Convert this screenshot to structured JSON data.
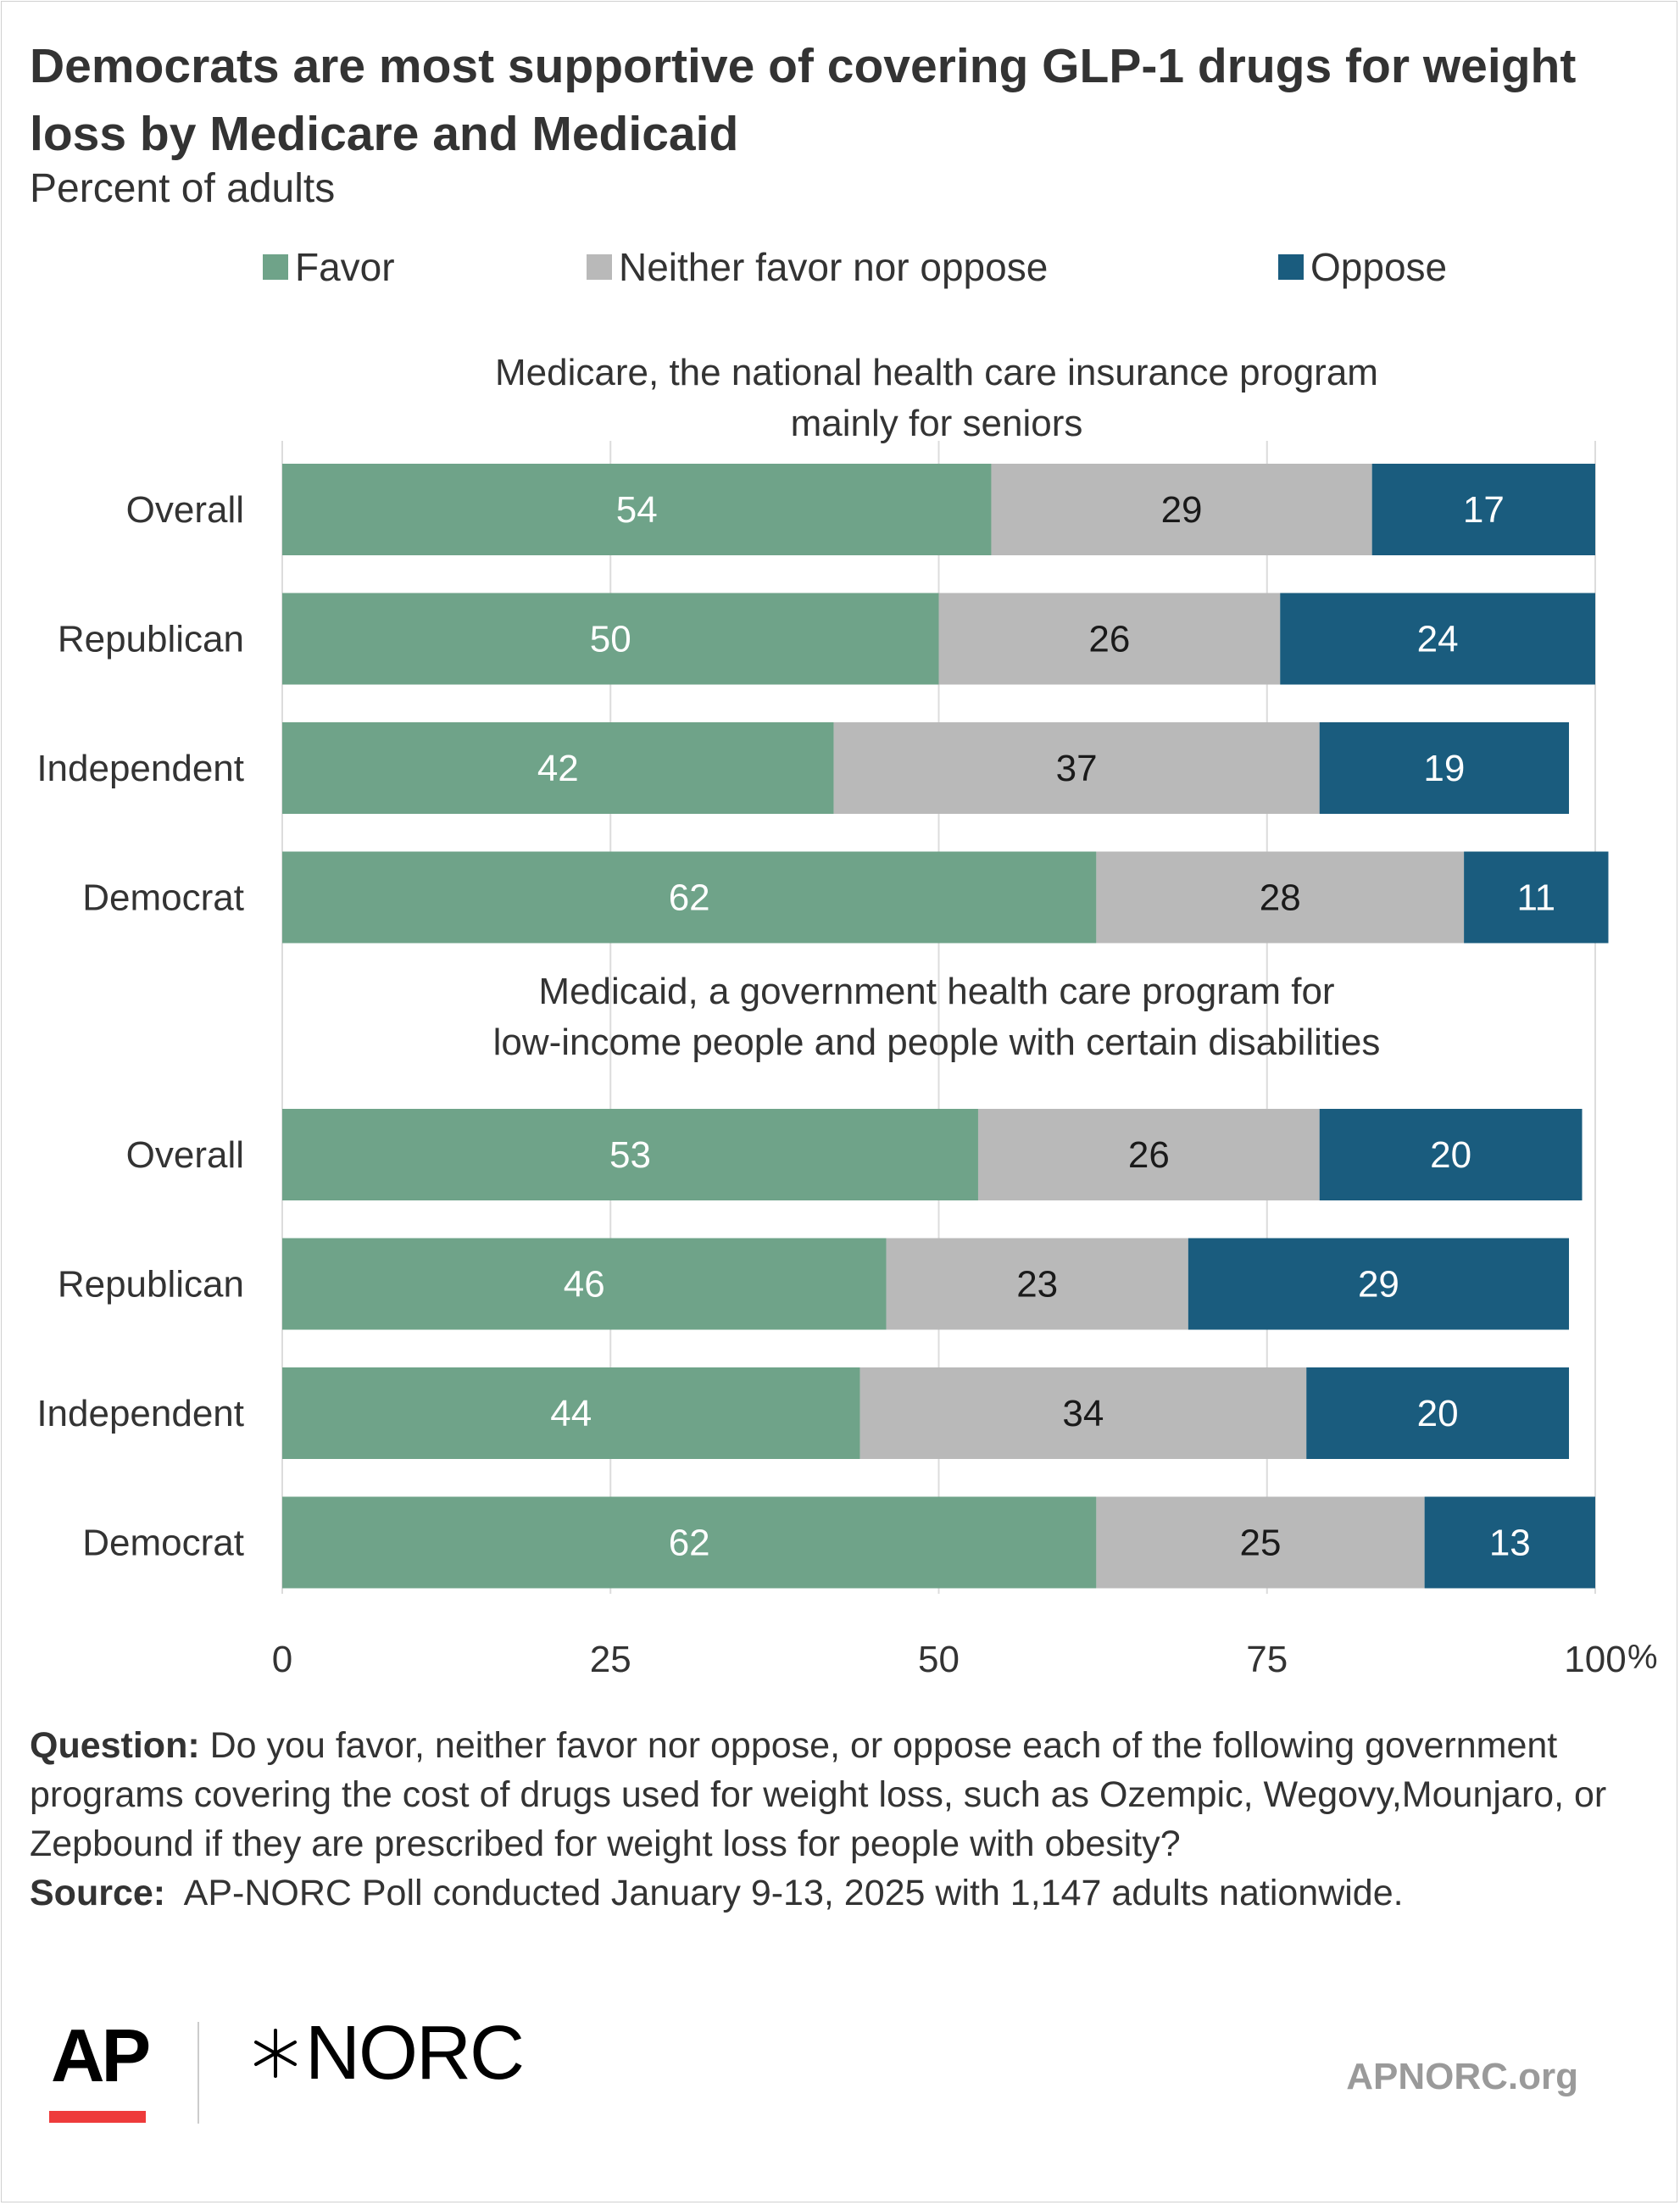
{
  "title": "Democrats are most supportive of covering GLP-1 drugs for weight loss by Medicare and Medicaid",
  "subtitle": "Percent of adults",
  "colors": {
    "favor": "#6fa389",
    "neither": "#b9b9b9",
    "oppose": "#1a5c7e"
  },
  "legend": [
    {
      "label": "Favor",
      "color": "#6fa389"
    },
    {
      "label": "Neither favor nor oppose",
      "color": "#b9b9b9"
    },
    {
      "label": "Oppose",
      "color": "#1a5c7e"
    }
  ],
  "chart_data": {
    "type": "bar",
    "orientation": "horizontal",
    "stacked": true,
    "xlim": [
      0,
      100
    ],
    "x_ticks": [
      "0",
      "25",
      "50",
      "75",
      "100"
    ],
    "x_unit": "%",
    "grid": true,
    "legend_position": "top",
    "panels": [
      {
        "title": "Medicare, the national health care insurance program mainly for seniors",
        "categories": [
          "Overall",
          "Republican",
          "Independent",
          "Democrat"
        ],
        "series": [
          {
            "name": "Favor",
            "values": [
              54,
              50,
              42,
              62
            ]
          },
          {
            "name": "Neither favor nor oppose",
            "values": [
              29,
              26,
              37,
              28
            ]
          },
          {
            "name": "Oppose",
            "values": [
              17,
              24,
              19,
              11
            ]
          }
        ]
      },
      {
        "title": "Medicaid, a government health care program for low-income people and people with certain disabilities",
        "categories": [
          "Overall",
          "Republican",
          "Independent",
          "Democrat"
        ],
        "series": [
          {
            "name": "Favor",
            "values": [
              53,
              46,
              44,
              62
            ]
          },
          {
            "name": "Neither favor nor oppose",
            "values": [
              26,
              23,
              34,
              25
            ]
          },
          {
            "name": "Oppose",
            "values": [
              20,
              29,
              20,
              13
            ]
          }
        ]
      }
    ]
  },
  "footnote": {
    "question_label": "Question:",
    "question_text": "Do you favor, neither favor nor oppose, or oppose each of the following government programs covering the cost of drugs used for weight loss, such as Ozempic, Wegovy,Mounjaro, or Zepbound if they are prescribed for weight loss for people with obesity?",
    "source_label": "Source:",
    "source_text": "AP-NORC Poll conducted January 9-13, 2025 with 1,147 adults nationwide."
  },
  "branding": {
    "ap_logo": "AP",
    "norc_logo": "NORC",
    "norc_icon": "star-burst-icon",
    "website": "APNORC.org"
  }
}
